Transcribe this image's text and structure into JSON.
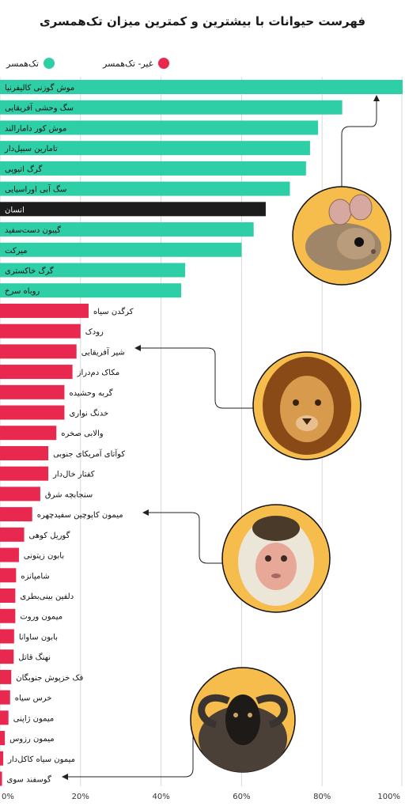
{
  "chart_data": {
    "type": "bar",
    "orientation": "horizontal",
    "title": "فهرست حیوانات با بیشترین و کمترین میزان تک‌همسری",
    "xlim": [
      0,
      100
    ],
    "x_tick_labels": [
      "0%",
      "20%",
      "40%",
      "60%",
      "80%",
      "100%"
    ],
    "x_ticks": [
      0,
      20,
      40,
      60,
      80,
      100
    ],
    "grid": true,
    "legend": {
      "placement": "top",
      "entries": [
        {
          "label": "تک‌همسر",
          "color": "#2ecfa6"
        },
        {
          "label": "غیر- تک‌همسر",
          "color": "#e8284f"
        }
      ]
    },
    "colors": {
      "monogamous": "#2ecfa6",
      "non_monogamous": "#e8284f",
      "human": "#1c1c1c"
    },
    "categories": [
      "موش گوزنی کالیفرنیا",
      "سگ وحشی آفریقایی",
      "موش کور دامارالند",
      "تامارین سبیل‌دار",
      "گرگ اتیوپی",
      "سگ آبی اوراسیایی",
      "انسان",
      "گیبون دست‌سفید",
      "میرکت",
      "گرگ خاکستری",
      "روباه سرخ",
      "کرگدن سیاه",
      "رودک",
      "شیر آفریقایی",
      "مکاک دم‌دراز",
      "گربه وحشیده",
      "خدنگ نواری",
      "والابی صخره",
      "کوآتای آمریکای جنوبی",
      "کفتار خال‌دار",
      "سنجابچه شرق",
      "میمون کاپوچین سفیدچهره",
      "گوریل کوهی",
      "بابون زیتونی",
      "شامپانزه",
      "دلفین بینی‌بطری",
      "میمون وروت",
      "بابون ساوانا",
      "نهنگ قاتل",
      "فک خزپوش جنوبگان",
      "خرس سیاه",
      "میمون ژاپنی",
      "میمون رزوس",
      "میمون سیاه کاکل‌دار",
      "گوسفند سوی"
    ],
    "values": [
      100,
      85,
      79,
      77,
      76,
      72,
      66,
      63,
      60,
      46,
      45,
      22,
      20,
      19,
      18,
      16,
      16,
      14,
      12,
      12,
      10,
      8,
      6,
      4.7,
      4,
      3.8,
      3.8,
      3.5,
      3.4,
      2.8,
      2.5,
      2.1,
      1.2,
      0.8,
      0.5
    ],
    "group": [
      "m",
      "m",
      "m",
      "m",
      "m",
      "m",
      "human",
      "m",
      "m",
      "m",
      "m",
      "n",
      "n",
      "n",
      "n",
      "n",
      "n",
      "n",
      "n",
      "n",
      "n",
      "n",
      "n",
      "n",
      "n",
      "n",
      "n",
      "n",
      "n",
      "n",
      "n",
      "n",
      "n",
      "n",
      "n"
    ],
    "callouts": [
      {
        "category": "موش گوزنی کالیفرنیا",
        "icon": "mouse-photo-icon"
      },
      {
        "category": "شیر آفریقایی",
        "icon": "lion-photo-icon"
      },
      {
        "category": "میمون کاپوچین سفیدچهره",
        "icon": "capuchin-photo-icon"
      },
      {
        "category": "گوسفند سوی",
        "icon": "sheep-photo-icon"
      }
    ]
  }
}
